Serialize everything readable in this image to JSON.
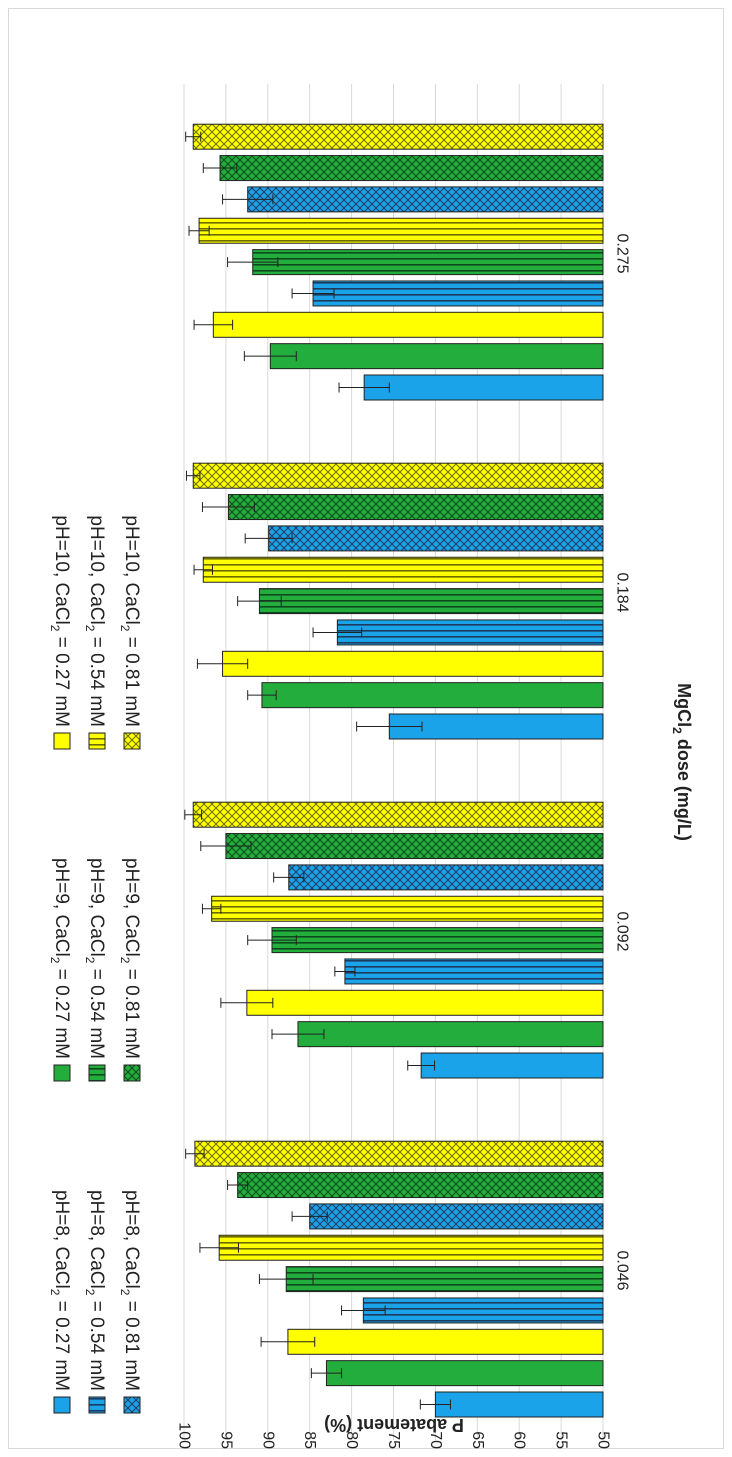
{
  "chart_data": {
    "type": "bar",
    "orientation": "rotated-90",
    "x_title": "MgCl₂ dose (mg/L)",
    "y_title": "P abatement (%)",
    "ylim": [
      50,
      100
    ],
    "y_ticks": [
      50,
      55,
      60,
      65,
      70,
      75,
      80,
      85,
      90,
      95,
      100
    ],
    "grid": true,
    "legend_position": "top",
    "categories": [
      "0.046",
      "0.092",
      "0.184",
      "0.275"
    ],
    "colors": {
      "blue": "#1aa3e8",
      "green": "#22ad3c",
      "yellow": "#ffff00",
      "border": "#222222",
      "grid": "#d9d9d9",
      "errorbar": "#222222"
    },
    "series": [
      {
        "name": "pH=8, CaCl₂ = 0.27 mM",
        "color": "blue",
        "pattern": "solid",
        "values": [
          70,
          71.7,
          75.5,
          78.5
        ],
        "errors": [
          1.8,
          1.6,
          3.9,
          3.0
        ]
      },
      {
        "name": "pH=9, CaCl₂ = 0.27 mM",
        "color": "green",
        "pattern": "solid",
        "values": [
          83,
          86.4,
          90.7,
          89.7
        ],
        "errors": [
          1.8,
          3.1,
          1.7,
          3.1
        ]
      },
      {
        "name": "pH=10, CaCl₂ = 0.27 mM",
        "color": "yellow",
        "pattern": "solid",
        "values": [
          87.6,
          92.5,
          95.4,
          96.5
        ],
        "errors": [
          3.2,
          3.1,
          3.0,
          2.3
        ]
      },
      {
        "name": "pH=8, CaCl₂ = 0.54 mM",
        "color": "blue",
        "pattern": "stripes",
        "values": [
          78.6,
          80.8,
          81.7,
          84.6
        ],
        "errors": [
          2.6,
          1.2,
          2.9,
          2.5
        ]
      },
      {
        "name": "pH=9, CaCl₂ = 0.54 mM",
        "color": "green",
        "pattern": "stripes",
        "values": [
          87.8,
          89.5,
          91.0,
          91.8
        ],
        "errors": [
          3.2,
          2.9,
          2.6,
          3.0
        ]
      },
      {
        "name": "pH=10, CaCl₂ = 0.54 mM",
        "color": "yellow",
        "pattern": "stripes",
        "values": [
          95.8,
          96.7,
          97.7,
          98.2
        ],
        "errors": [
          2.3,
          1.1,
          1.1,
          1.2
        ]
      },
      {
        "name": "pH=8, CaCl₂ = 0.81 mM",
        "color": "blue",
        "pattern": "cross",
        "values": [
          85.0,
          87.5,
          89.9,
          92.4
        ],
        "errors": [
          2.1,
          1.8,
          2.8,
          3.0
        ]
      },
      {
        "name": "pH=9, CaCl₂ = 0.81 mM",
        "color": "green",
        "pattern": "cross",
        "values": [
          93.6,
          95.0,
          94.7,
          95.7
        ],
        "errors": [
          1.2,
          3.0,
          3.1,
          2.0
        ]
      },
      {
        "name": "pH=10, CaCl₂ = 0.81 mM",
        "color": "yellow",
        "pattern": "cross",
        "values": [
          98.7,
          98.9,
          98.9,
          98.9
        ],
        "errors": [
          1.1,
          1.0,
          0.8,
          0.9
        ]
      }
    ]
  }
}
